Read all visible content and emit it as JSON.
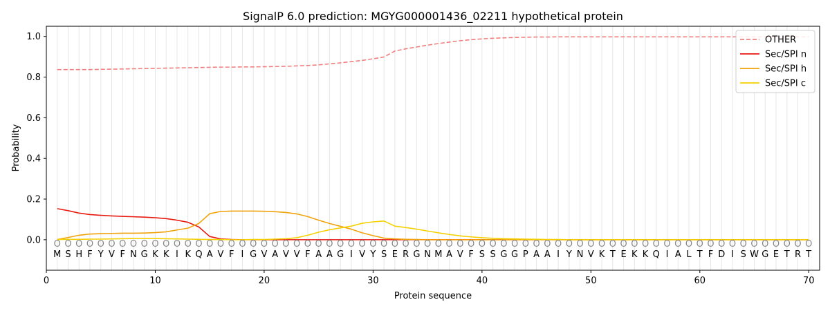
{
  "chart_data": {
    "type": "line",
    "title": "SignalP 6.0 prediction: MGYG000001436_02211 hypothetical protein",
    "xlabel": "Protein sequence",
    "ylabel": "Probability",
    "xlim": [
      0,
      71
    ],
    "ylim": [
      -0.15,
      1.05
    ],
    "x_ticks": [
      0,
      10,
      20,
      30,
      40,
      50,
      60,
      70
    ],
    "y_ticks": [
      0.0,
      0.2,
      0.4,
      0.6,
      0.8,
      1.0
    ],
    "x_tick_labels": [
      "0",
      "10",
      "20",
      "30",
      "40",
      "50",
      "60",
      "70"
    ],
    "y_tick_labels": [
      "0.0",
      "0.2",
      "0.4",
      "0.6",
      "0.8",
      "1.0"
    ],
    "grid": "vertical lines at each residue",
    "legend_position": "top-right",
    "sequence": [
      "M",
      "S",
      "H",
      "F",
      "Y",
      "V",
      "F",
      "N",
      "G",
      "K",
      "K",
      "I",
      "K",
      "Q",
      "A",
      "V",
      "F",
      "I",
      "G",
      "V",
      "A",
      "V",
      "V",
      "F",
      "A",
      "A",
      "G",
      "I",
      "V",
      "Y",
      "S",
      "E",
      "R",
      "G",
      "N",
      "M",
      "A",
      "V",
      "F",
      "S",
      "S",
      "G",
      "G",
      "P",
      "A",
      "A",
      "I",
      "Y",
      "N",
      "V",
      "K",
      "T",
      "E",
      "K",
      "K",
      "Q",
      "I",
      "A",
      "L",
      "T",
      "F",
      "D",
      "I",
      "S",
      "W",
      "G",
      "E",
      "T",
      "R",
      "T"
    ],
    "region_label": "O",
    "x": [
      1,
      2,
      3,
      4,
      5,
      6,
      7,
      8,
      9,
      10,
      11,
      12,
      13,
      14,
      15,
      16,
      17,
      18,
      19,
      20,
      21,
      22,
      23,
      24,
      25,
      26,
      27,
      28,
      29,
      30,
      31,
      32,
      33,
      34,
      35,
      36,
      37,
      38,
      39,
      40,
      41,
      42,
      43,
      44,
      45,
      46,
      47,
      48,
      49,
      50,
      51,
      52,
      53,
      54,
      55,
      56,
      57,
      58,
      59,
      60,
      61,
      62,
      63,
      64,
      65,
      66,
      67,
      68,
      69,
      70
    ],
    "series": [
      {
        "name": "OTHER",
        "color": "#f08080",
        "dashed": true,
        "values": [
          0.837,
          0.837,
          0.837,
          0.837,
          0.838,
          0.839,
          0.84,
          0.841,
          0.842,
          0.843,
          0.844,
          0.845,
          0.846,
          0.847,
          0.848,
          0.849,
          0.849,
          0.85,
          0.85,
          0.851,
          0.852,
          0.853,
          0.855,
          0.857,
          0.86,
          0.865,
          0.87,
          0.876,
          0.882,
          0.89,
          0.899,
          0.928,
          0.939,
          0.948,
          0.957,
          0.965,
          0.972,
          0.979,
          0.984,
          0.988,
          0.991,
          0.993,
          0.995,
          0.996,
          0.997,
          0.997,
          0.998,
          0.998,
          0.998,
          0.998,
          0.998,
          0.998,
          0.998,
          0.998,
          0.998,
          0.998,
          0.998,
          0.998,
          0.998,
          0.998,
          0.998,
          0.998,
          0.998,
          0.998,
          0.998,
          0.998,
          0.998,
          0.998,
          0.998,
          0.998
        ]
      },
      {
        "name": "Sec/SPI n",
        "color": "#e8190f",
        "dashed": false,
        "values": [
          0.153,
          0.143,
          0.131,
          0.124,
          0.12,
          0.117,
          0.115,
          0.113,
          0.111,
          0.108,
          0.104,
          0.096,
          0.086,
          0.063,
          0.016,
          0.004,
          0.001,
          0.0,
          0.0,
          0.0,
          0.0,
          0.0,
          0.0,
          0.0,
          0.0,
          0.0,
          0.0,
          0.0,
          0.0,
          0.0,
          0.0,
          0.0,
          0.0,
          0.0,
          0.0,
          0.0,
          0.0,
          0.0,
          0.0,
          0.0,
          0.0,
          0.0,
          0.0,
          0.0,
          0.0,
          0.0,
          0.0,
          0.0,
          0.0,
          0.0,
          0.0,
          0.0,
          0.0,
          0.0,
          0.0,
          0.0,
          0.0,
          0.0,
          0.0,
          0.0,
          0.0,
          0.0,
          0.0,
          0.0,
          0.0,
          0.0,
          0.0,
          0.0,
          0.0,
          0.0
        ]
      },
      {
        "name": "Sec/SPI h",
        "color": "#f0a30a",
        "dashed": false,
        "values": [
          0.001,
          0.011,
          0.022,
          0.028,
          0.03,
          0.031,
          0.032,
          0.032,
          0.033,
          0.035,
          0.039,
          0.048,
          0.057,
          0.08,
          0.128,
          0.139,
          0.141,
          0.141,
          0.141,
          0.14,
          0.138,
          0.134,
          0.127,
          0.114,
          0.096,
          0.08,
          0.066,
          0.052,
          0.034,
          0.02,
          0.008,
          0.004,
          0.002,
          0.001,
          0.0,
          0.0,
          0.0,
          0.0,
          0.0,
          0.0,
          0.0,
          0.0,
          0.0,
          0.0,
          0.0,
          0.0,
          0.0,
          0.0,
          0.0,
          0.0,
          0.0,
          0.0,
          0.0,
          0.0,
          0.0,
          0.0,
          0.0,
          0.0,
          0.0,
          0.0,
          0.0,
          0.0,
          0.0,
          0.0,
          0.0,
          0.0,
          0.0,
          0.0,
          0.0,
          0.0
        ]
      },
      {
        "name": "Sec/SPI c",
        "color": "#f5d000",
        "dashed": false,
        "values": [
          0.001,
          0.002,
          0.002,
          0.003,
          0.003,
          0.004,
          0.005,
          0.006,
          0.006,
          0.006,
          0.005,
          0.004,
          0.003,
          0.002,
          0.001,
          0.001,
          0.0,
          0.0,
          0.001,
          0.001,
          0.003,
          0.005,
          0.01,
          0.022,
          0.037,
          0.049,
          0.058,
          0.067,
          0.081,
          0.088,
          0.092,
          0.067,
          0.06,
          0.052,
          0.043,
          0.034,
          0.026,
          0.019,
          0.014,
          0.01,
          0.007,
          0.005,
          0.004,
          0.003,
          0.002,
          0.001,
          0.001,
          0.0,
          0.0,
          0.0,
          0.0,
          0.0,
          0.0,
          0.0,
          0.0,
          0.0,
          0.0,
          0.0,
          0.0,
          0.0,
          0.0,
          0.0,
          0.0,
          0.0,
          0.0,
          0.0,
          0.0,
          0.0,
          0.0,
          0.0
        ]
      }
    ]
  }
}
